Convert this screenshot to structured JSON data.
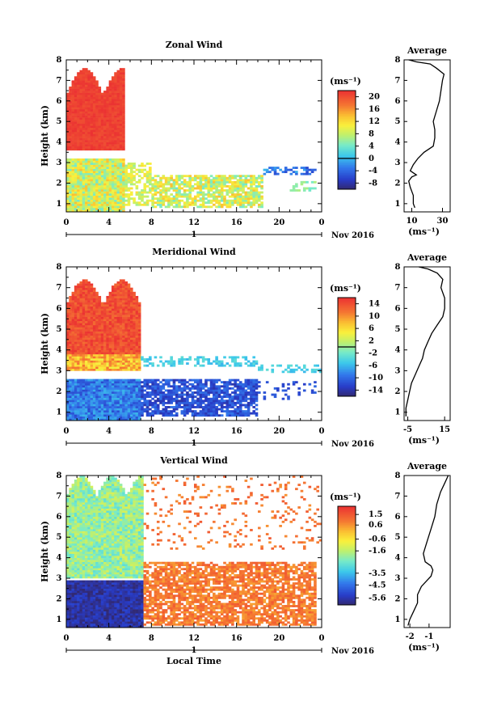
{
  "chart_data": [
    {
      "type": "heatmap",
      "title": "Zonal Wind",
      "ylabel": "Height (km)",
      "xlabel": "",
      "x_ticks": [
        "0",
        "4",
        "8",
        "12",
        "16",
        "20",
        "0"
      ],
      "y_ticks": [
        "1",
        "2",
        "3",
        "4",
        "5",
        "6",
        "7",
        "8"
      ],
      "xlim": [
        0,
        24
      ],
      "ylim": [
        0.6,
        8
      ],
      "date_marker": "1",
      "date_label": "Nov 2016",
      "colorbar": {
        "unit": "(ms⁻¹)",
        "ticks": [
          "20",
          "16",
          "12",
          "8",
          "4",
          "0",
          "-4",
          "-8"
        ],
        "range": [
          -10,
          22
        ],
        "zero_line": 0
      },
      "profile": {
        "title": "Average",
        "xlabel": "(ms⁻¹)",
        "x_ticks": [
          "10",
          "30"
        ],
        "xlim": [
          5,
          35
        ],
        "points": [
          [
            12,
            0.8
          ],
          [
            11,
            1.0
          ],
          [
            11,
            1.4
          ],
          [
            9,
            1.8
          ],
          [
            8,
            2.1
          ],
          [
            10,
            2.3
          ],
          [
            13,
            2.4
          ],
          [
            9,
            2.6
          ],
          [
            11,
            2.9
          ],
          [
            14,
            3.2
          ],
          [
            18,
            3.5
          ],
          [
            24,
            3.8
          ],
          [
            25,
            4.2
          ],
          [
            25,
            4.6
          ],
          [
            24,
            5.0
          ],
          [
            26,
            5.5
          ],
          [
            28,
            6.0
          ],
          [
            29,
            6.5
          ],
          [
            30,
            7.0
          ],
          [
            31,
            7.3
          ],
          [
            26,
            7.6
          ],
          [
            22,
            7.8
          ],
          [
            13,
            7.9
          ],
          [
            8,
            8.0
          ]
        ]
      }
    },
    {
      "type": "heatmap",
      "title": "Meridional Wind",
      "ylabel": "Height (km)",
      "xlabel": "",
      "x_ticks": [
        "0",
        "4",
        "8",
        "12",
        "16",
        "20",
        "0"
      ],
      "y_ticks": [
        "1",
        "2",
        "3",
        "4",
        "5",
        "6",
        "7",
        "8"
      ],
      "xlim": [
        0,
        24
      ],
      "ylim": [
        0.6,
        8
      ],
      "date_marker": "1",
      "date_label": "Nov 2016",
      "colorbar": {
        "unit": "(ms⁻¹)",
        "ticks": [
          "14",
          "10",
          "6",
          "2",
          "-2",
          "-6",
          "-10",
          "-14"
        ],
        "range": [
          -16,
          16
        ],
        "zero_line": 0
      },
      "profile": {
        "title": "Average",
        "xlabel": "(ms⁻¹)",
        "x_ticks": [
          "-5",
          "15"
        ],
        "xlim": [
          -7,
          18
        ],
        "points": [
          [
            -6,
            0.8
          ],
          [
            -6,
            1.2
          ],
          [
            -5,
            1.6
          ],
          [
            -4,
            2.0
          ],
          [
            -3,
            2.4
          ],
          [
            -1,
            2.8
          ],
          [
            1,
            3.2
          ],
          [
            3,
            3.6
          ],
          [
            4,
            4.0
          ],
          [
            6,
            4.4
          ],
          [
            8,
            4.8
          ],
          [
            11,
            5.2
          ],
          [
            14,
            5.6
          ],
          [
            15,
            6.0
          ],
          [
            15,
            6.5
          ],
          [
            13,
            7.0
          ],
          [
            14,
            7.4
          ],
          [
            11,
            7.7
          ],
          [
            6,
            7.9
          ],
          [
            1,
            8.0
          ]
        ]
      }
    },
    {
      "type": "heatmap",
      "title": "Vertical Wind",
      "ylabel": "Height (km)",
      "xlabel": "Local Time",
      "x_ticks": [
        "0",
        "4",
        "8",
        "12",
        "16",
        "20",
        "0"
      ],
      "y_ticks": [
        "1",
        "2",
        "3",
        "4",
        "5",
        "6",
        "7",
        "8"
      ],
      "xlim": [
        0,
        24
      ],
      "ylim": [
        0.6,
        8
      ],
      "date_marker": "1",
      "date_label": "Nov 2016",
      "colorbar": {
        "unit": "(ms⁻¹)",
        "ticks": [
          "1.5",
          "0.6",
          "-0.6",
          "-1.6",
          "-3.5",
          "-4.5",
          "-5.6"
        ],
        "range": [
          -6.2,
          2.2
        ],
        "zero_line": null
      },
      "profile": {
        "title": "Average",
        "xlabel": "(ms⁻¹)",
        "x_ticks": [
          "-2",
          "-1"
        ],
        "xlim": [
          -2.3,
          0.1
        ],
        "points": [
          [
            -2.1,
            0.7
          ],
          [
            -2.0,
            1.0
          ],
          [
            -1.8,
            1.4
          ],
          [
            -1.6,
            1.8
          ],
          [
            -1.6,
            2.2
          ],
          [
            -1.4,
            2.6
          ],
          [
            -1.1,
            2.9
          ],
          [
            -0.9,
            3.1
          ],
          [
            -0.8,
            3.4
          ],
          [
            -0.9,
            3.6
          ],
          [
            -1.2,
            3.8
          ],
          [
            -1.3,
            4.2
          ],
          [
            -1.1,
            4.8
          ],
          [
            -0.9,
            5.4
          ],
          [
            -0.7,
            6.0
          ],
          [
            -0.6,
            6.6
          ],
          [
            -0.4,
            7.2
          ],
          [
            -0.2,
            7.6
          ],
          [
            0.0,
            8.0
          ]
        ]
      }
    }
  ]
}
